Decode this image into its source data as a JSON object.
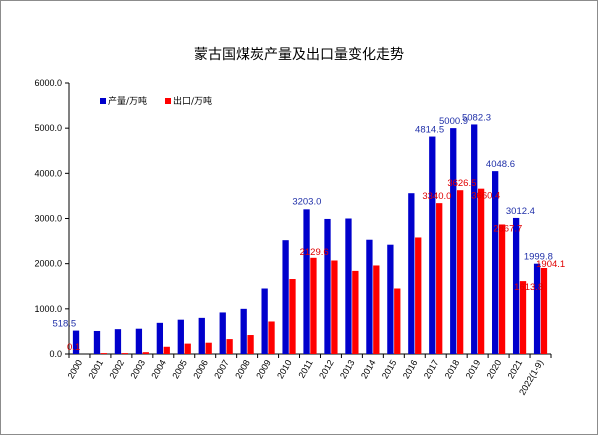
{
  "chart_data": {
    "type": "bar",
    "title": "蒙古国煤炭产量及出口量变化走势",
    "categories": [
      "2000",
      "2001",
      "2002",
      "2003",
      "2004",
      "2005",
      "2006",
      "2007",
      "2008",
      "2009",
      "2010",
      "2011",
      "2012",
      "2013",
      "2014",
      "2015",
      "2016",
      "2017",
      "2018",
      "2019",
      "2020",
      "2021",
      "2022(1-9)"
    ],
    "ylim": [
      0,
      6000
    ],
    "yticks": [
      "0.0",
      "1000.0",
      "2000.0",
      "3000.0",
      "4000.0",
      "5000.0",
      "6000.0"
    ],
    "legend_position": "top-left",
    "grid": false,
    "series": [
      {
        "name": "产量/万吨",
        "color": "#0000cc",
        "values": [
          518.5,
          510,
          550,
          560,
          690,
          760,
          800,
          920,
          1000,
          1450,
          2520,
          3203.0,
          2990,
          3000,
          2530,
          2420,
          3560,
          4814.5,
          5000.9,
          5082.3,
          4048.6,
          3012.4,
          1999.8
        ],
        "labels": {
          "0": "518.5",
          "11": "3203.0",
          "17": "4814.5",
          "18": "5000.9",
          "19": "5082.3",
          "20": "4048.6",
          "21": "3012.4",
          "22": "1999.8"
        }
      },
      {
        "name": "出口/万吨",
        "color": "#ff0000",
        "values": [
          0.1,
          20,
          20,
          40,
          160,
          230,
          250,
          330,
          420,
          720,
          1660,
          2129.6,
          2070,
          1840,
          1960,
          1450,
          2580,
          3340.0,
          3626.5,
          3660.4,
          2867.7,
          1613.8,
          1904.1
        ],
        "labels": {
          "0": "0.1",
          "11": "2129.6",
          "17": "3340.0",
          "18": "3626.5",
          "19": "3660.4",
          "20": "2867.7",
          "21": "1613.8",
          "22": "1904.1"
        }
      }
    ]
  }
}
